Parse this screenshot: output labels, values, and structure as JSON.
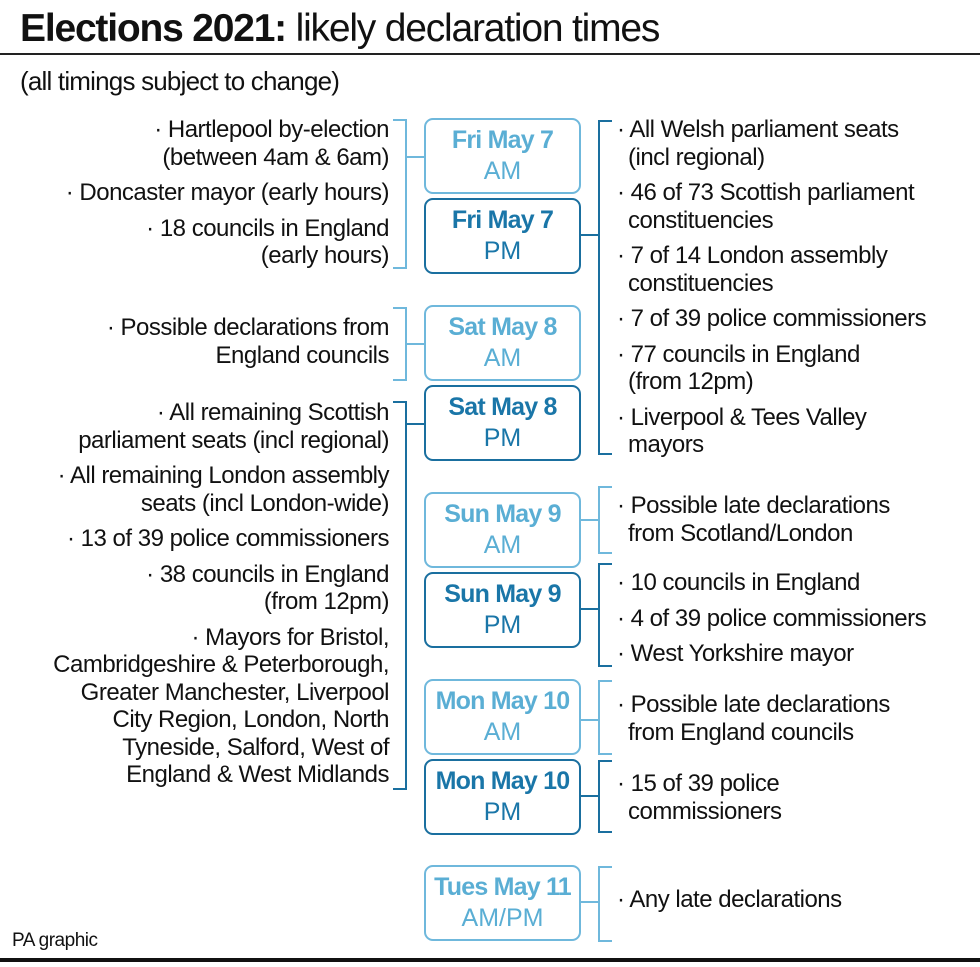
{
  "header": {
    "title_bold": "Elections 2021:",
    "title_rest": " likely declaration times",
    "subtitle": "(all timings subject to change)"
  },
  "colors": {
    "am_blue": "#5aaed4",
    "pm_blue": "#1a76a8",
    "text": "#111111"
  },
  "slots": [
    {
      "day": "Fri May 7",
      "time": "AM",
      "side": "left",
      "items": [
        "· Hartlepool by-election\n(between 4am & 6am)",
        "· Doncaster mayor (early hours)",
        "· 18 councils in England\n(early hours)"
      ]
    },
    {
      "day": "Fri May 7",
      "time": "PM",
      "side": "right",
      "items": [
        "· All Welsh parliament seats\n(incl regional)",
        "· 46 of 73 Scottish parliament\nconstituencies",
        "· 7 of 14 London assembly\nconstituencies",
        "· 7 of 39 police commissioners",
        "· 77 councils in England\n(from 12pm)",
        "· Liverpool & Tees Valley\nmayors"
      ]
    },
    {
      "day": "Sat May 8",
      "time": "AM",
      "side": "left",
      "items": [
        "· Possible declarations from\nEngland councils"
      ]
    },
    {
      "day": "Sat May 8",
      "time": "PM",
      "side": "left",
      "items": [
        "· All remaining Scottish\nparliament seats (incl regional)",
        "· All remaining London assembly\nseats (incl London-wide)",
        "· 13 of 39 police commissioners",
        "· 38 councils in England\n(from 12pm)",
        "· Mayors for Bristol,\nCambridgeshire & Peterborough,\nGreater Manchester, Liverpool\nCity Region, London, North\nTyneside, Salford, West of\nEngland & West Midlands"
      ]
    },
    {
      "day": "Sun May 9",
      "time": "AM",
      "side": "right",
      "items": [
        "· Possible late declarations\nfrom Scotland/London"
      ]
    },
    {
      "day": "Sun May 9",
      "time": "PM",
      "side": "right",
      "items": [
        "· 10 councils in England",
        "· 4 of 39 police commissioners",
        "· West Yorkshire mayor"
      ]
    },
    {
      "day": "Mon May 10",
      "time": "AM",
      "side": "right",
      "items": [
        "· Possible late declarations\nfrom England councils"
      ]
    },
    {
      "day": "Mon May 10",
      "time": "PM",
      "side": "right",
      "items": [
        "· 15 of 39 police\ncommissioners"
      ]
    },
    {
      "day": "Tues May 11",
      "time": "AM/PM",
      "side": "right",
      "items": [
        "· Any late declarations"
      ]
    }
  ],
  "footer": {
    "credit": "PA graphic"
  }
}
